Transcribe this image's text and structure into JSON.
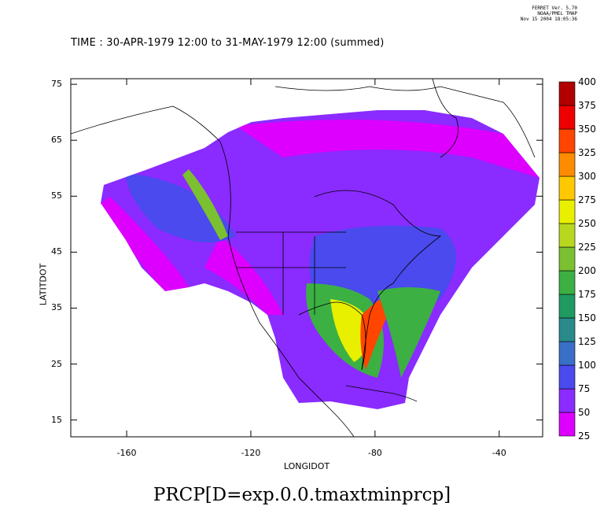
{
  "header": {
    "line1": "FERRET Ver. 5.70",
    "line2": "NOAA/PMEL TMAP",
    "line3": "Nov 15 2004 18:05:36"
  },
  "time_label": "TIME : 30-APR-1979 12:00 to 31-MAY-1979 12:00 (summed)",
  "footer_title": "PRCP[D=exp.0.0.tmaxtminprcp]",
  "chart_data": {
    "type": "heatmap",
    "xlabel": "LONGIDOT",
    "ylabel": "LATITDOT",
    "xlim": [
      -178,
      -26
    ],
    "ylim": [
      12,
      76
    ],
    "xticks": [
      -160,
      -120,
      -80,
      -40
    ],
    "xtick_labels": [
      "-160",
      "-120",
      "-80",
      "-40"
    ],
    "yticks": [
      75,
      65,
      55,
      45,
      35,
      25,
      15
    ],
    "ytick_labels": [
      "75",
      "65",
      "55",
      "45",
      "35",
      "25",
      "15"
    ],
    "colorbar": {
      "levels": [
        25,
        50,
        75,
        100,
        125,
        150,
        175,
        200,
        225,
        250,
        275,
        300,
        325,
        350,
        375,
        400
      ],
      "labels": [
        "25",
        "50",
        "75",
        "100",
        "125",
        "150",
        "175",
        "200",
        "225",
        "250",
        "275",
        "300",
        "325",
        "350",
        "375",
        "400"
      ],
      "colors": [
        "#dd00ff",
        "#8a2bff",
        "#4a4aee",
        "#3a6fc8",
        "#2a8a8a",
        "#1f9a60",
        "#3cb043",
        "#7ac030",
        "#b8d820",
        "#e8f000",
        "#ffc800",
        "#ff8c00",
        "#ff4500",
        "#ee0000",
        "#b00000"
      ]
    }
  }
}
